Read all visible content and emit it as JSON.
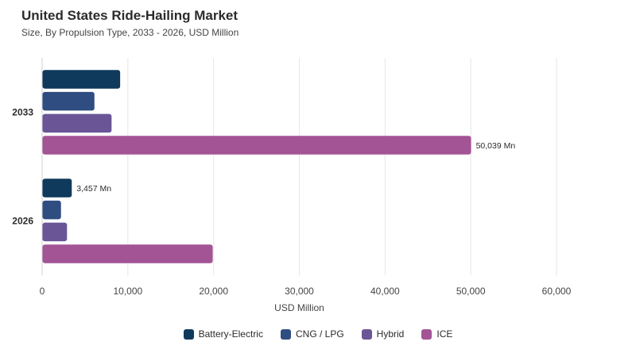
{
  "title": "United States Ride-Hailing Market",
  "subtitle": "Size, By Propulsion Type, 2033 - 2026, USD Million",
  "chart_data": {
    "type": "bar",
    "orientation": "horizontal",
    "categories": [
      "2033",
      "2026"
    ],
    "series": [
      {
        "name": "Battery-Electric",
        "color": "#0f3a5c",
        "values": [
          9100,
          3457
        ]
      },
      {
        "name": "CNG / LPG",
        "color": "#2f4d80",
        "values": [
          6100,
          2200
        ]
      },
      {
        "name": "Hybrid",
        "color": "#6a5596",
        "values": [
          8100,
          2900
        ]
      },
      {
        "name": "ICE",
        "color": "#a35495",
        "values": [
          50039,
          19900
        ]
      }
    ],
    "data_labels": [
      {
        "series": 3,
        "category": 0,
        "text": "50,039 Mn"
      },
      {
        "series": 0,
        "category": 1,
        "text": "3,457 Mn"
      }
    ],
    "xlim": [
      0,
      60000
    ],
    "xticks": [
      0,
      10000,
      20000,
      30000,
      40000,
      50000,
      60000
    ],
    "xtick_labels": [
      "0",
      "10,000",
      "20,000",
      "30,000",
      "40,000",
      "50,000",
      "60,000"
    ],
    "xlabel": "USD Million",
    "ylabel": "",
    "grid": true,
    "legend_position": "bottom"
  }
}
